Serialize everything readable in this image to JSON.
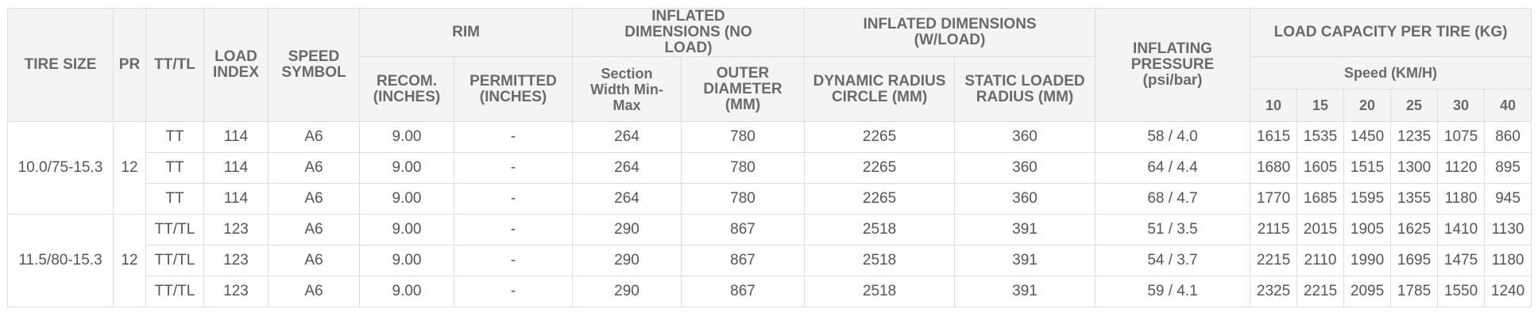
{
  "header": {
    "tire_size": "TIRE SIZE",
    "pr": "PR",
    "tt_tl": "TT/TL",
    "load_index": "LOAD INDEX",
    "speed_symbol": "SPEED SYMBOL",
    "rim": "RIM",
    "rim_recom": "RECOM. (INCHES)",
    "rim_permitted": "PERMITTED (INCHES)",
    "dim_no_load": "INFLATED DIMENSIONS (NO LOAD)",
    "section_width": "Section Width Min-Max",
    "outer_diameter": "OUTER DIAMETER (MM)",
    "dim_w_load": "INFLATED DIMENSIONS (W/LOAD)",
    "dynamic_radius": "DYNAMIC RADIUS CIRCLE (MM)",
    "static_radius": "STATIC LOADED RADIUS (MM)",
    "pressure": "INFLATING PRESSURE (psi/bar)",
    "load_capacity": "LOAD CAPACITY PER TIRE (KG)",
    "speed": "Speed (KM/H)",
    "speeds": [
      "10",
      "15",
      "20",
      "25",
      "30",
      "40"
    ]
  },
  "groups": [
    {
      "tire_size": "10.0/75-15.3",
      "pr": "12",
      "rows": [
        [
          "TT",
          "114",
          "A6",
          "9.00",
          "-",
          "264",
          "780",
          "2265",
          "360",
          "58 / 4.0",
          "1615",
          "1535",
          "1450",
          "1235",
          "1075",
          "860"
        ],
        [
          "TT",
          "114",
          "A6",
          "9.00",
          "-",
          "264",
          "780",
          "2265",
          "360",
          "64 / 4.4",
          "1680",
          "1605",
          "1515",
          "1300",
          "1120",
          "895"
        ],
        [
          "TT",
          "114",
          "A6",
          "9.00",
          "-",
          "264",
          "780",
          "2265",
          "360",
          "68 / 4.7",
          "1770",
          "1685",
          "1595",
          "1355",
          "1180",
          "945"
        ]
      ]
    },
    {
      "tire_size": "11.5/80-15.3",
      "pr": "12",
      "rows": [
        [
          "TT/TL",
          "123",
          "A6",
          "9.00",
          "-",
          "290",
          "867",
          "2518",
          "391",
          "51 / 3.5",
          "2115",
          "2015",
          "1905",
          "1625",
          "1410",
          "1130"
        ],
        [
          "TT/TL",
          "123",
          "A6",
          "9.00",
          "-",
          "290",
          "867",
          "2518",
          "391",
          "54 / 3.7",
          "2215",
          "2110",
          "1990",
          "1695",
          "1475",
          "1180"
        ],
        [
          "TT/TL",
          "123",
          "A6",
          "9.00",
          "-",
          "290",
          "867",
          "2518",
          "391",
          "59 / 4.1",
          "2325",
          "2215",
          "2095",
          "1785",
          "1550",
          "1240"
        ]
      ]
    }
  ]
}
